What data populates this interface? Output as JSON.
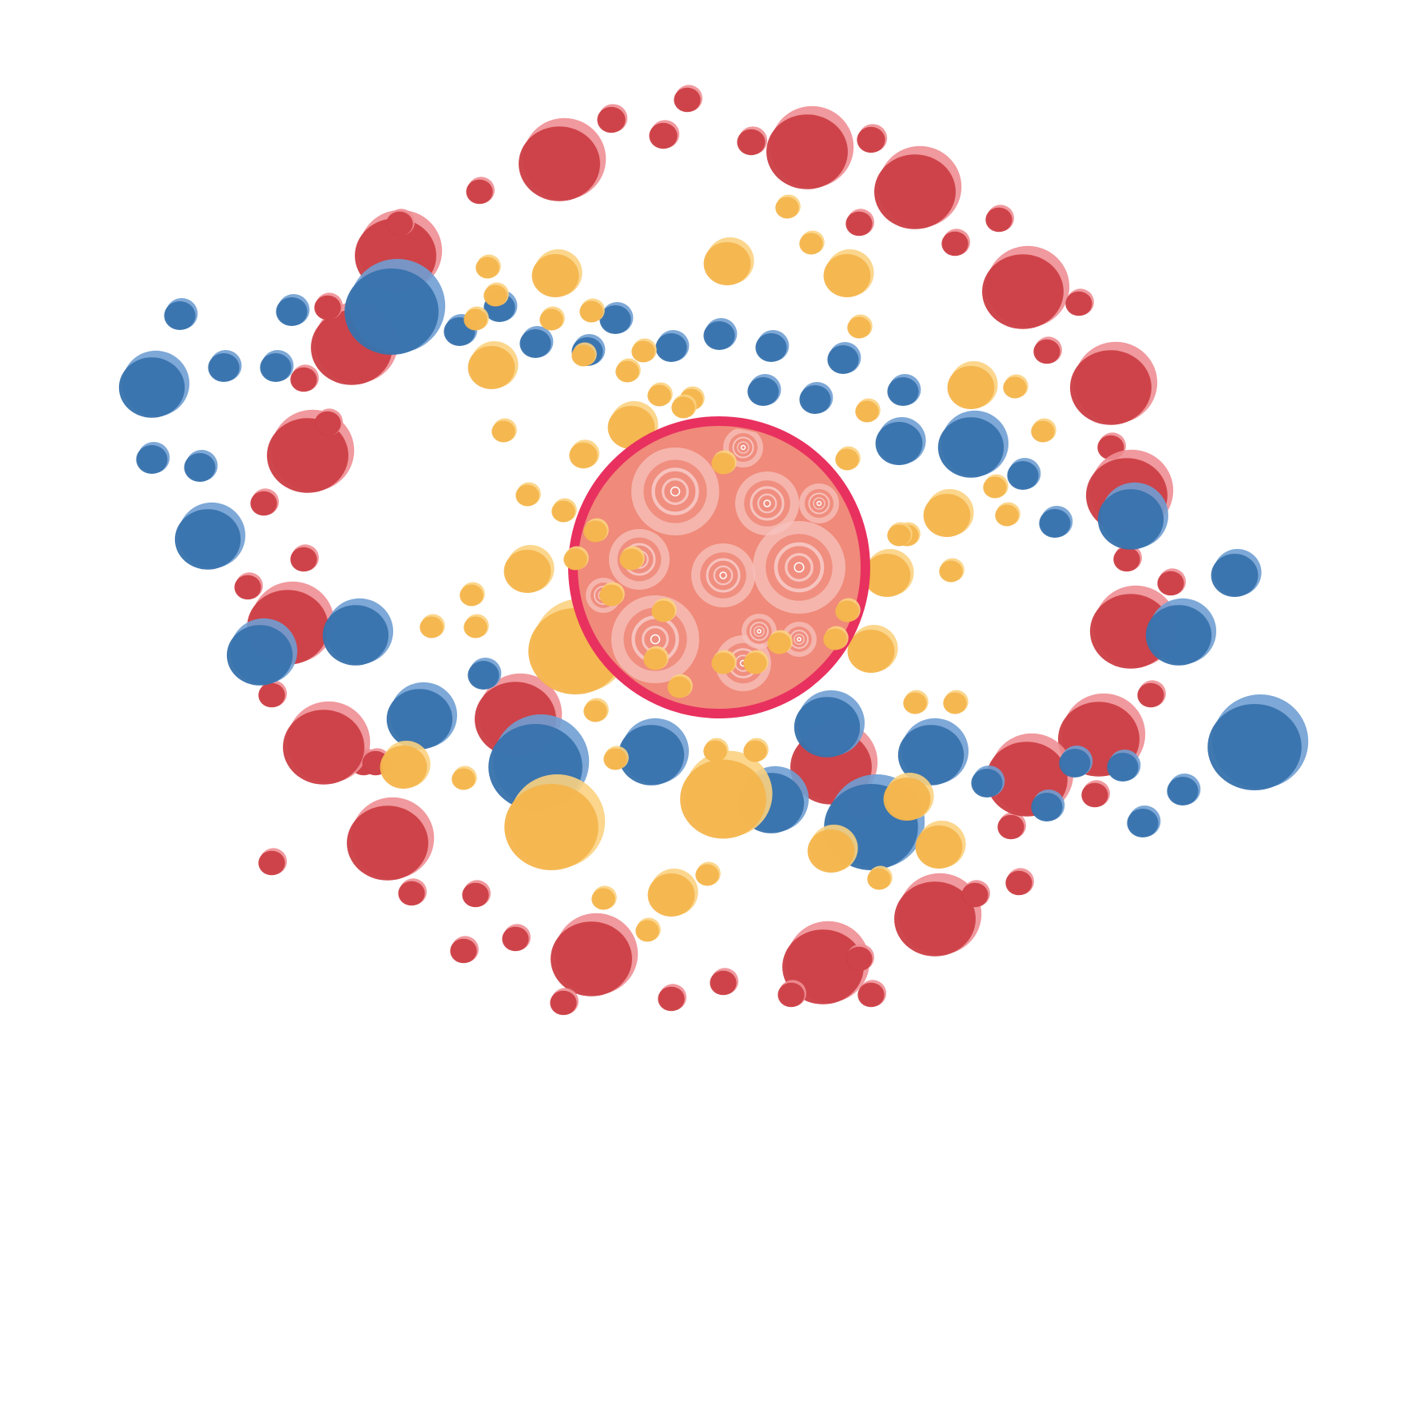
{
  "colors": {
    "background": "#ffffff",
    "red": "#cc3f46",
    "red_light": "#ee8e93",
    "blue": "#3873ad",
    "blue_light": "#6f9fd3",
    "yellow": "#f5b54d",
    "yellow_light": "#fbd27f",
    "center_ring": "#e8315f",
    "center_fill": "#f08a7a",
    "center_swirl": "#f7c3be"
  },
  "icons": [
    "dot-cluster-illustration",
    "center-swirl-circle"
  ]
}
